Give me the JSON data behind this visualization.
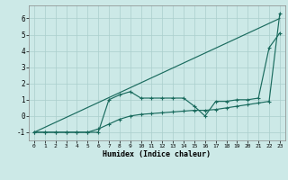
{
  "xlabel": "Humidex (Indice chaleur)",
  "bg_color": "#cce9e7",
  "grid_color": "#aacfcc",
  "line_color": "#1a6b5e",
  "x": [
    0,
    1,
    2,
    3,
    4,
    5,
    6,
    7,
    8,
    9,
    10,
    11,
    12,
    13,
    14,
    15,
    16,
    17,
    18,
    19,
    20,
    21,
    22,
    23
  ],
  "line1": [
    -1.0,
    -0.696,
    -0.391,
    -0.087,
    0.217,
    0.522,
    0.826,
    1.13,
    1.435,
    1.739,
    2.043,
    2.348,
    2.652,
    2.957,
    3.261,
    3.565,
    3.87,
    4.174,
    4.478,
    4.783,
    5.087,
    5.391,
    5.696,
    6.0
  ],
  "line2": [
    -1,
    -1,
    -1,
    -1,
    -1,
    -1,
    -1,
    1.0,
    1.3,
    1.5,
    1.1,
    1.1,
    1.1,
    1.1,
    1.1,
    0.6,
    0.0,
    0.9,
    0.9,
    1.0,
    1.0,
    1.1,
    4.2,
    5.1
  ],
  "line3": [
    -1,
    -1,
    -1,
    -1,
    -1,
    -1,
    -0.8,
    -0.5,
    -0.2,
    0.0,
    0.1,
    0.15,
    0.2,
    0.25,
    0.3,
    0.35,
    0.35,
    0.4,
    0.5,
    0.6,
    0.7,
    0.8,
    0.9,
    6.3
  ],
  "ylim": [
    -1.5,
    6.8
  ],
  "xlim": [
    -0.5,
    23.5
  ],
  "yticks": [
    -1,
    0,
    1,
    2,
    3,
    4,
    5,
    6
  ],
  "xticks": [
    0,
    1,
    2,
    3,
    4,
    5,
    6,
    7,
    8,
    9,
    10,
    11,
    12,
    13,
    14,
    15,
    16,
    17,
    18,
    19,
    20,
    21,
    22,
    23
  ]
}
